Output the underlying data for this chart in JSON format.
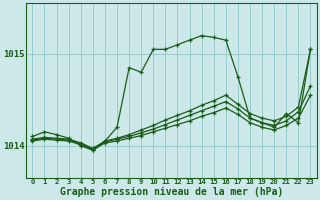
{
  "background_color": "#cce8e8",
  "grid_color": "#99cccc",
  "line_color": "#1a5c1a",
  "xlabel": "Graphe pression niveau de la mer (hPa)",
  "xlabel_fontsize": 7,
  "xtick_labels": [
    "0",
    "1",
    "2",
    "3",
    "4",
    "5",
    "6",
    "7",
    "8",
    "9",
    "10",
    "11",
    "12",
    "13",
    "14",
    "15",
    "16",
    "17",
    "18",
    "19",
    "20",
    "21",
    "22",
    "23"
  ],
  "ytick_vals": [
    1014,
    1015
  ],
  "ytick_labels": [
    "1014",
    "1015"
  ],
  "ylim": [
    1013.65,
    1015.55
  ],
  "xlim": [
    -0.5,
    23.5
  ],
  "series": [
    {
      "x": [
        0,
        1,
        2,
        3,
        4,
        5,
        6,
        7,
        8,
        9,
        10,
        11,
        12,
        13,
        14,
        15,
        16,
        17,
        18,
        19,
        20,
        21,
        22,
        23
      ],
      "y": [
        1014.1,
        1014.15,
        1014.12,
        1014.08,
        1014.0,
        1013.95,
        1014.05,
        1014.2,
        1014.85,
        1014.8,
        1015.05,
        1015.05,
        1015.1,
        1015.15,
        1015.2,
        1015.18,
        1015.15,
        1014.75,
        1014.3,
        1014.25,
        1014.2,
        1014.35,
        1014.25,
        1015.05
      ],
      "marker": "+"
    },
    {
      "x": [
        0,
        1,
        2,
        3,
        4,
        5,
        6,
        7,
        8,
        9,
        10,
        11,
        12,
        13,
        14,
        15,
        16,
        17,
        18,
        19,
        20,
        21,
        22,
        23
      ],
      "y": [
        1014.07,
        1014.09,
        1014.08,
        1014.07,
        1014.03,
        1013.97,
        1014.05,
        1014.08,
        1014.12,
        1014.17,
        1014.22,
        1014.28,
        1014.33,
        1014.38,
        1014.44,
        1014.49,
        1014.55,
        1014.45,
        1014.35,
        1014.3,
        1014.27,
        1014.32,
        1014.42,
        1015.05
      ],
      "marker": "+"
    },
    {
      "x": [
        0,
        1,
        2,
        3,
        4,
        5,
        6,
        7,
        8,
        9,
        10,
        11,
        12,
        13,
        14,
        15,
        16,
        17,
        18,
        19,
        20,
        21,
        22,
        23
      ],
      "y": [
        1014.06,
        1014.08,
        1014.07,
        1014.06,
        1014.02,
        1013.96,
        1014.04,
        1014.07,
        1014.1,
        1014.14,
        1014.18,
        1014.23,
        1014.28,
        1014.33,
        1014.38,
        1014.43,
        1014.48,
        1014.4,
        1014.3,
        1014.25,
        1014.22,
        1014.27,
        1014.37,
        1014.65
      ],
      "marker": "+"
    },
    {
      "x": [
        0,
        1,
        2,
        3,
        4,
        5,
        6,
        7,
        8,
        9,
        10,
        11,
        12,
        13,
        14,
        15,
        16,
        17,
        18,
        19,
        20,
        21,
        22,
        23
      ],
      "y": [
        1014.05,
        1014.07,
        1014.06,
        1014.05,
        1014.01,
        1013.95,
        1014.03,
        1014.05,
        1014.08,
        1014.11,
        1014.15,
        1014.19,
        1014.23,
        1014.27,
        1014.32,
        1014.36,
        1014.41,
        1014.34,
        1014.25,
        1014.2,
        1014.17,
        1014.22,
        1014.3,
        1014.55
      ],
      "marker": "+"
    }
  ]
}
